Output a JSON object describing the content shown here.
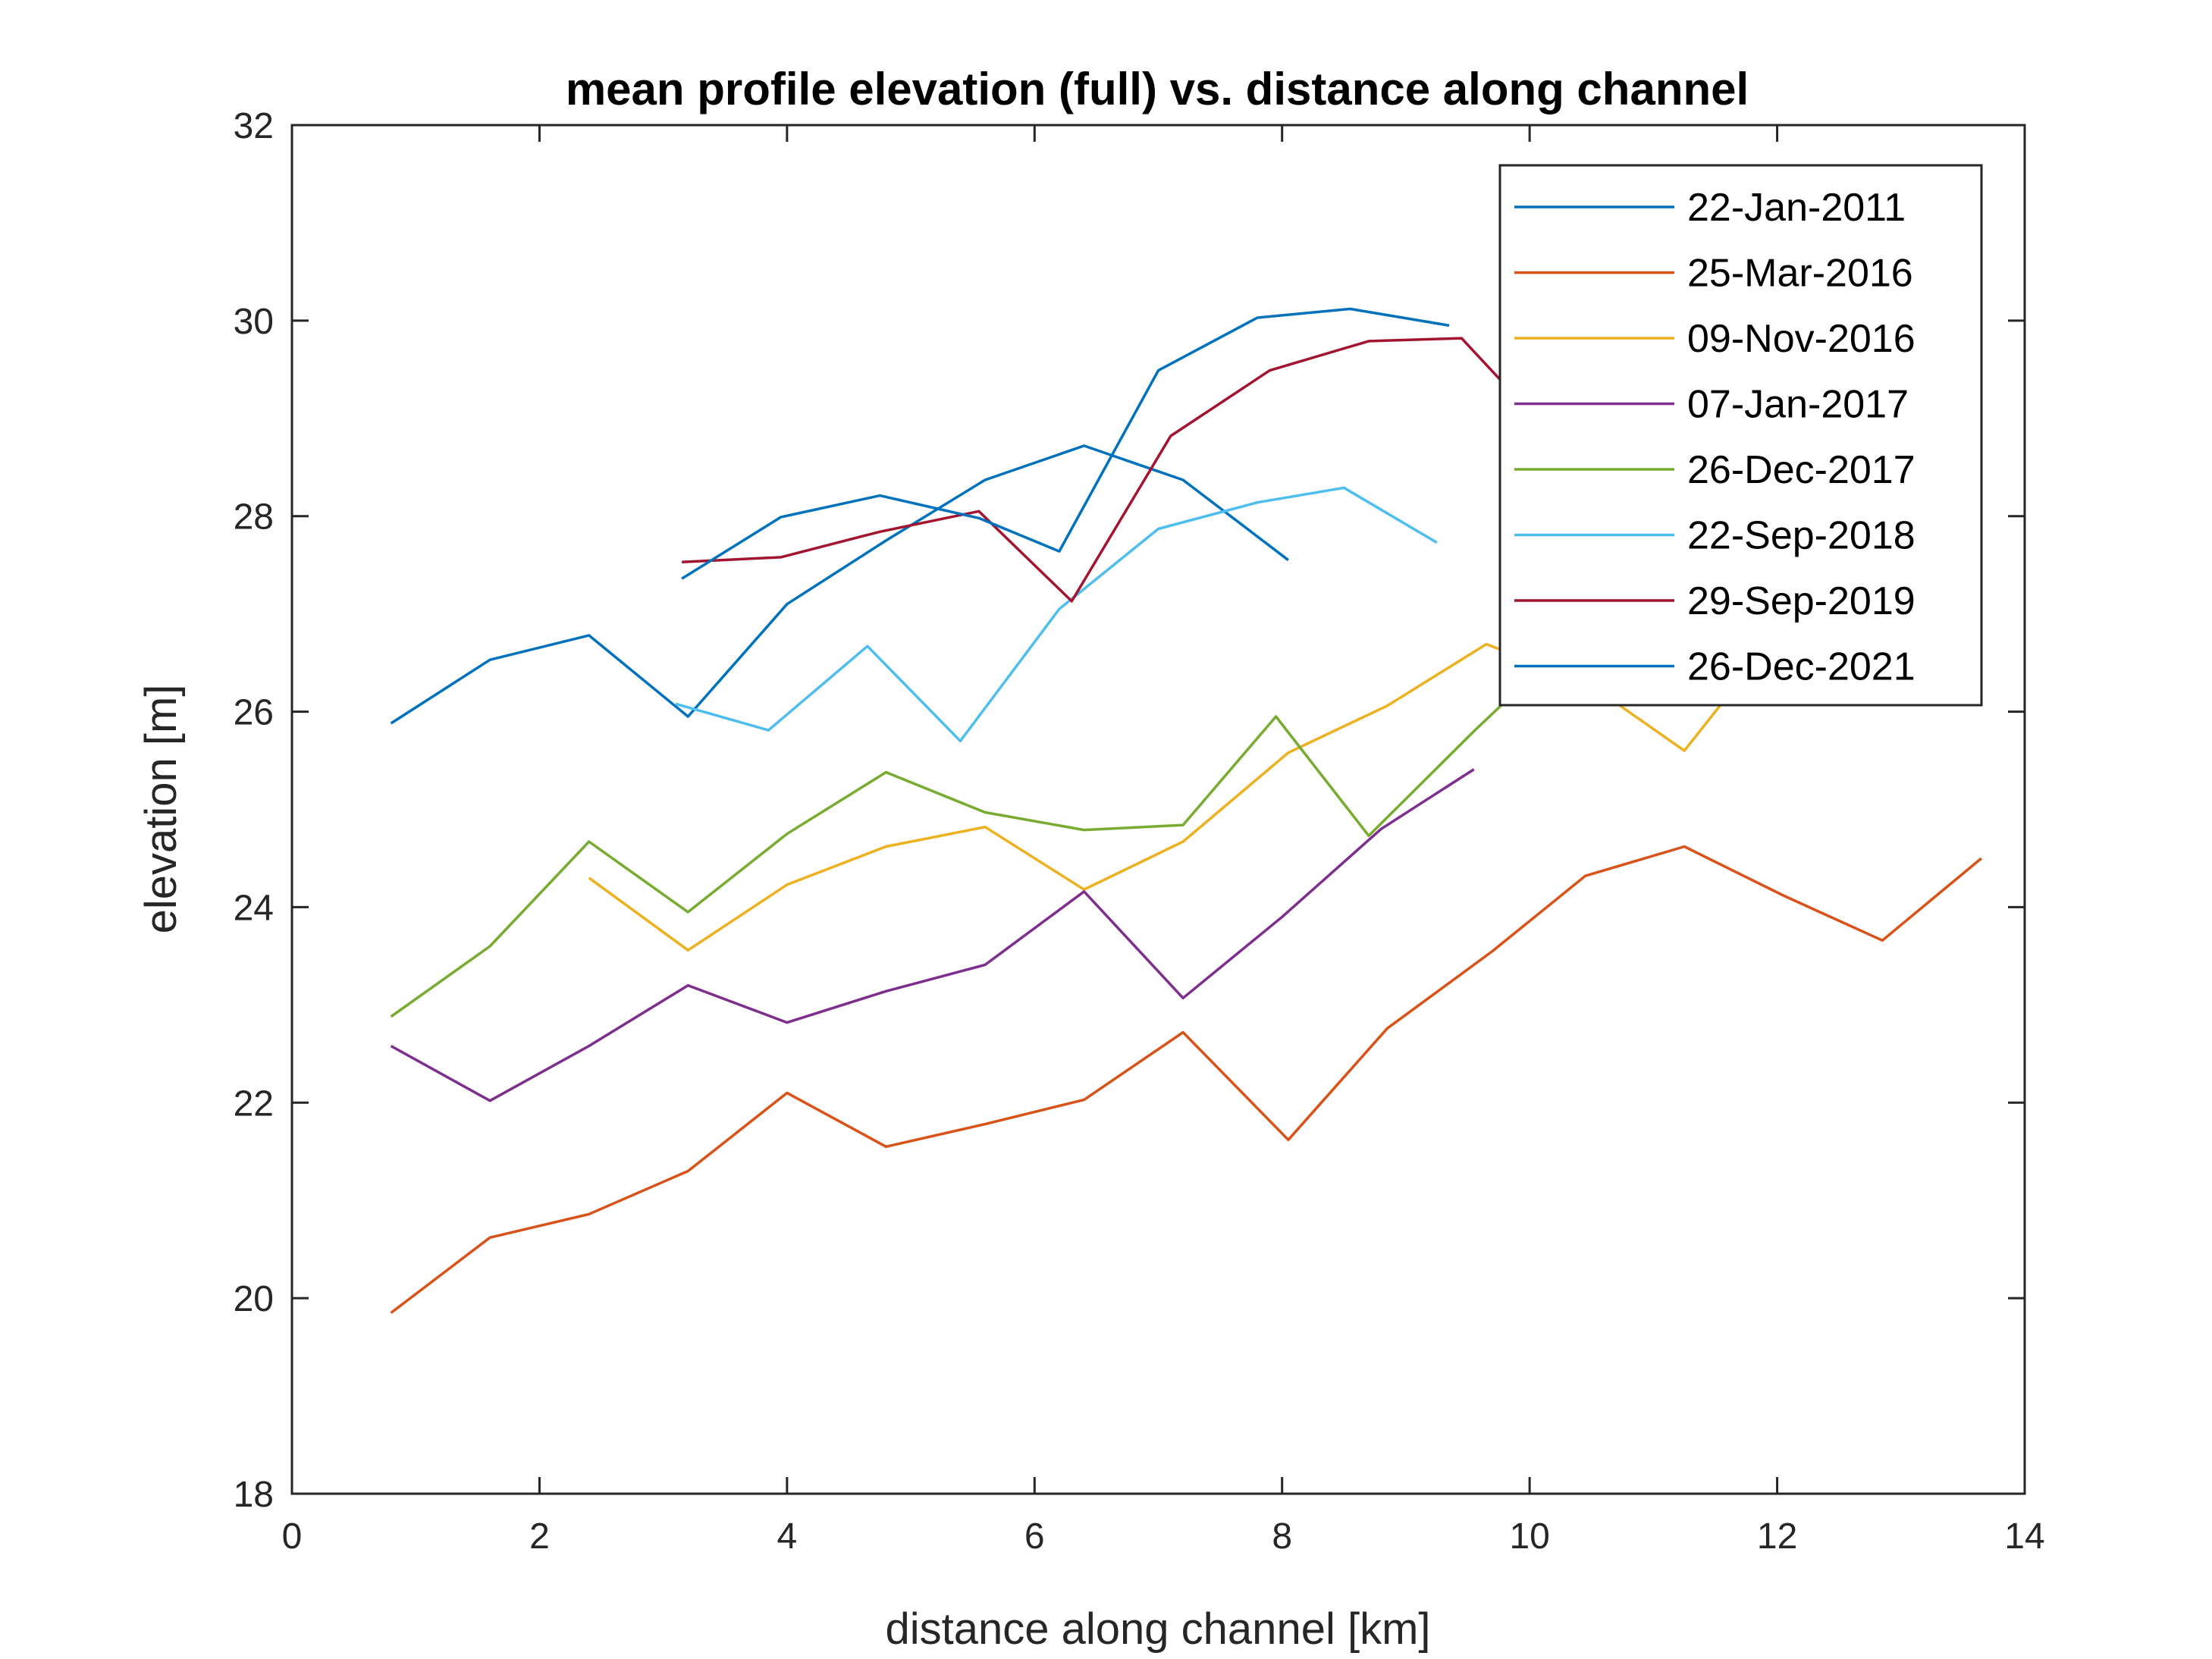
{
  "chart_data": {
    "type": "line",
    "title": "mean profile elevation (full) vs. distance along channel",
    "xlabel": "distance along channel [km]",
    "ylabel": "elevation [m]",
    "xlim": [
      0,
      14
    ],
    "ylim": [
      18,
      32
    ],
    "xticks": [
      0,
      2,
      4,
      6,
      8,
      10,
      12,
      14
    ],
    "yticks": [
      18,
      20,
      22,
      24,
      26,
      28,
      30,
      32
    ],
    "grid": false,
    "legend_position": "top-right",
    "series": [
      {
        "name": "22-Jan-2011",
        "color": "#0072BD",
        "x": [
          0.8,
          1.6,
          2.4,
          3.2,
          4.0,
          4.8,
          5.6,
          6.4,
          7.2,
          8.05
        ],
        "y": [
          25.88,
          26.53,
          26.78,
          25.95,
          27.1,
          27.75,
          28.37,
          28.72,
          28.37,
          27.55
        ]
      },
      {
        "name": "25-Mar-2016",
        "color": "#D95319",
        "x": [
          0.8,
          1.6,
          2.4,
          3.2,
          4.0,
          4.8,
          5.6,
          6.4,
          7.2,
          8.05,
          8.85,
          9.7,
          10.45,
          11.25,
          12.05,
          12.85,
          13.65
        ],
        "y": [
          19.85,
          20.62,
          20.86,
          21.3,
          22.1,
          21.55,
          21.78,
          22.03,
          22.72,
          21.62,
          22.76,
          23.55,
          24.32,
          24.62,
          24.12,
          23.66,
          24.5
        ]
      },
      {
        "name": "09-Nov-2016",
        "color": "#EDB120",
        "x": [
          2.4,
          3.2,
          4.0,
          4.8,
          5.6,
          6.4,
          7.2,
          8.05,
          8.85,
          9.65,
          10.45,
          11.25,
          12.0
        ],
        "y": [
          24.3,
          23.56,
          24.23,
          24.62,
          24.82,
          24.18,
          24.67,
          25.58,
          26.06,
          26.69,
          26.31,
          25.6,
          26.8
        ]
      },
      {
        "name": "07-Jan-2017",
        "color": "#7E2F8E",
        "x": [
          0.8,
          1.6,
          2.4,
          3.2,
          4.0,
          4.8,
          5.6,
          6.4,
          7.2,
          8.0,
          8.8,
          9.55
        ],
        "y": [
          22.58,
          22.02,
          22.58,
          23.2,
          22.82,
          23.14,
          23.41,
          24.16,
          23.07,
          23.9,
          24.8,
          25.41
        ]
      },
      {
        "name": "26-Dec-2017",
        "color": "#77AC30",
        "x": [
          0.8,
          1.6,
          2.4,
          3.2,
          4.0,
          4.8,
          5.6,
          6.4,
          7.2,
          7.95,
          8.7,
          9.55,
          10.3
        ],
        "y": [
          22.88,
          23.6,
          24.67,
          23.95,
          24.75,
          25.38,
          24.97,
          24.79,
          24.84,
          25.95,
          24.73,
          25.8,
          26.7
        ]
      },
      {
        "name": "22-Sep-2018",
        "color": "#4DBEEE",
        "x": [
          3.1,
          3.85,
          4.65,
          5.4,
          6.2,
          7.0,
          7.8,
          8.5,
          9.25
        ],
        "y": [
          26.08,
          25.81,
          26.67,
          25.7,
          27.05,
          27.87,
          28.14,
          28.29,
          27.73
        ]
      },
      {
        "name": "29-Sep-2019",
        "color": "#A2142F",
        "x": [
          3.15,
          3.95,
          4.75,
          5.55,
          6.3,
          7.1,
          7.9,
          8.7,
          9.45,
          10.2
        ],
        "y": [
          27.53,
          27.58,
          27.84,
          28.05,
          27.13,
          28.82,
          29.49,
          29.79,
          29.82,
          28.8
        ]
      },
      {
        "name": "26-Dec-2021",
        "color": "#0072BD",
        "x": [
          3.15,
          3.95,
          4.75,
          5.55,
          6.2,
          7.0,
          7.8,
          8.55,
          9.35
        ],
        "y": [
          27.36,
          27.99,
          28.21,
          27.98,
          27.64,
          29.49,
          30.03,
          30.12,
          29.95
        ]
      }
    ]
  }
}
